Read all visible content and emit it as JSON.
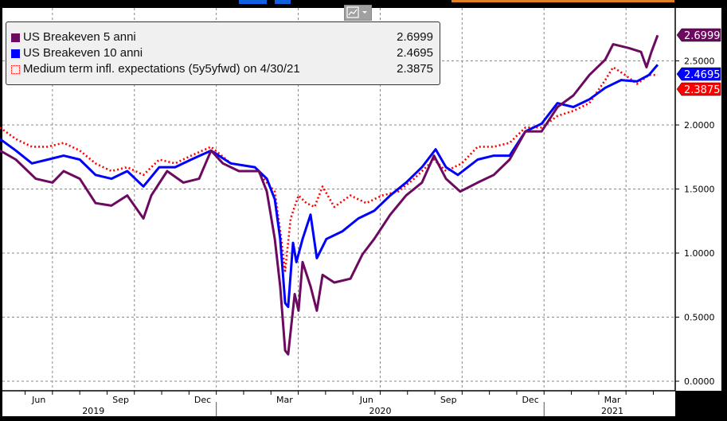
{
  "chart_data": {
    "type": "line",
    "title": "",
    "x_unit": "months since Jan 2019",
    "ylim": [
      -0.05,
      2.95
    ],
    "y_ticks": [
      "0.0000",
      "0.5000",
      "1.0000",
      "1.5000",
      "2.0000",
      "2.5000"
    ],
    "y_tick_values": [
      0,
      0.5,
      1,
      1.5,
      2,
      2.5
    ],
    "x_ticks": [
      {
        "label": "Jun",
        "m": 5.5
      },
      {
        "label": "Sep",
        "m": 8.5
      },
      {
        "label": "Dec",
        "m": 11.5
      },
      {
        "label": "Mar",
        "m": 14.5
      },
      {
        "label": "Jun",
        "m": 17.5
      },
      {
        "label": "Sep",
        "m": 20.5
      },
      {
        "label": "Dec",
        "m": 23.5
      },
      {
        "label": "Mar",
        "m": 26.5
      }
    ],
    "years": [
      {
        "label": "2019",
        "m": 7.5
      },
      {
        "label": "2020",
        "m": 18
      },
      {
        "label": "2021",
        "m": 26.5
      }
    ],
    "grid": true,
    "legend_position": "top-left",
    "series": [
      {
        "name": "US Breakeven 5 anni",
        "last": "2.6999",
        "color": "#6b0a5e",
        "style": "solid",
        "points": [
          [
            4.08,
            1.8
          ],
          [
            4.66,
            1.73
          ],
          [
            5.39,
            1.58
          ],
          [
            6.0,
            1.55
          ],
          [
            6.41,
            1.64
          ],
          [
            7.0,
            1.58
          ],
          [
            7.58,
            1.39
          ],
          [
            8.16,
            1.37
          ],
          [
            8.74,
            1.45
          ],
          [
            9.33,
            1.27
          ],
          [
            9.62,
            1.45
          ],
          [
            10.2,
            1.64
          ],
          [
            10.79,
            1.55
          ],
          [
            11.37,
            1.58
          ],
          [
            11.81,
            1.8
          ],
          [
            12.24,
            1.7
          ],
          [
            12.83,
            1.64
          ],
          [
            13.56,
            1.64
          ],
          [
            13.85,
            1.48
          ],
          [
            14.14,
            1.11
          ],
          [
            14.34,
            0.74
          ],
          [
            14.52,
            0.24
          ],
          [
            14.63,
            0.21
          ],
          [
            14.87,
            0.68
          ],
          [
            15.01,
            0.55
          ],
          [
            15.16,
            0.93
          ],
          [
            15.45,
            0.74
          ],
          [
            15.68,
            0.55
          ],
          [
            15.89,
            0.83
          ],
          [
            16.32,
            0.77
          ],
          [
            16.91,
            0.8
          ],
          [
            17.35,
            0.99
          ],
          [
            17.78,
            1.11
          ],
          [
            18.37,
            1.3
          ],
          [
            18.95,
            1.45
          ],
          [
            19.53,
            1.55
          ],
          [
            19.97,
            1.76
          ],
          [
            20.41,
            1.58
          ],
          [
            20.93,
            1.48
          ],
          [
            21.57,
            1.55
          ],
          [
            22.16,
            1.61
          ],
          [
            22.74,
            1.73
          ],
          [
            23.32,
            1.95
          ],
          [
            23.91,
            1.95
          ],
          [
            24.49,
            2.14
          ],
          [
            25.07,
            2.23
          ],
          [
            25.66,
            2.39
          ],
          [
            26.24,
            2.51
          ],
          [
            26.53,
            2.63
          ],
          [
            27.11,
            2.6
          ],
          [
            27.55,
            2.57
          ],
          [
            27.75,
            2.45
          ],
          [
            27.93,
            2.57
          ],
          [
            28.16,
            2.7
          ]
        ]
      },
      {
        "name": "US Breakeven 10 anni",
        "last": "2.4695",
        "color": "#0000ff",
        "style": "solid",
        "points": [
          [
            4.08,
            1.89
          ],
          [
            4.66,
            1.8
          ],
          [
            5.25,
            1.7
          ],
          [
            5.83,
            1.73
          ],
          [
            6.41,
            1.76
          ],
          [
            7.0,
            1.73
          ],
          [
            7.58,
            1.61
          ],
          [
            8.16,
            1.58
          ],
          [
            8.74,
            1.64
          ],
          [
            9.33,
            1.52
          ],
          [
            9.91,
            1.67
          ],
          [
            10.49,
            1.67
          ],
          [
            11.08,
            1.73
          ],
          [
            11.81,
            1.8
          ],
          [
            12.53,
            1.7
          ],
          [
            13.41,
            1.67
          ],
          [
            13.85,
            1.58
          ],
          [
            14.14,
            1.42
          ],
          [
            14.34,
            1.11
          ],
          [
            14.52,
            0.61
          ],
          [
            14.63,
            0.58
          ],
          [
            14.81,
            1.08
          ],
          [
            14.93,
            0.93
          ],
          [
            15.16,
            1.11
          ],
          [
            15.45,
            1.3
          ],
          [
            15.68,
            0.96
          ],
          [
            16.03,
            1.11
          ],
          [
            16.62,
            1.17
          ],
          [
            17.2,
            1.27
          ],
          [
            17.78,
            1.33
          ],
          [
            18.37,
            1.45
          ],
          [
            18.95,
            1.55
          ],
          [
            19.53,
            1.67
          ],
          [
            20.03,
            1.81
          ],
          [
            20.41,
            1.67
          ],
          [
            20.84,
            1.61
          ],
          [
            21.57,
            1.73
          ],
          [
            22.16,
            1.76
          ],
          [
            22.74,
            1.76
          ],
          [
            23.32,
            1.95
          ],
          [
            23.91,
            2.01
          ],
          [
            24.49,
            2.17
          ],
          [
            25.07,
            2.14
          ],
          [
            25.66,
            2.2
          ],
          [
            26.24,
            2.29
          ],
          [
            26.82,
            2.35
          ],
          [
            27.4,
            2.34
          ],
          [
            27.84,
            2.39
          ],
          [
            28.16,
            2.47
          ]
        ]
      },
      {
        "name": "Medium term infl. expectations (5y5yfwd) on 4/30/21",
        "last": "2.3875",
        "color": "#ff0000",
        "style": "dotted",
        "points": [
          [
            4.08,
            1.98
          ],
          [
            4.66,
            1.89
          ],
          [
            5.25,
            1.83
          ],
          [
            5.83,
            1.83
          ],
          [
            6.41,
            1.86
          ],
          [
            7.0,
            1.8
          ],
          [
            7.58,
            1.7
          ],
          [
            8.16,
            1.64
          ],
          [
            8.74,
            1.67
          ],
          [
            9.33,
            1.61
          ],
          [
            9.91,
            1.73
          ],
          [
            10.49,
            1.7
          ],
          [
            11.08,
            1.76
          ],
          [
            11.81,
            1.83
          ],
          [
            12.53,
            1.7
          ],
          [
            13.41,
            1.67
          ],
          [
            13.85,
            1.55
          ],
          [
            14.14,
            1.48
          ],
          [
            14.34,
            1.17
          ],
          [
            14.52,
            0.86
          ],
          [
            14.72,
            1.27
          ],
          [
            15.01,
            1.45
          ],
          [
            15.3,
            1.39
          ],
          [
            15.6,
            1.36
          ],
          [
            15.89,
            1.52
          ],
          [
            16.32,
            1.36
          ],
          [
            16.91,
            1.45
          ],
          [
            17.49,
            1.39
          ],
          [
            18.07,
            1.45
          ],
          [
            18.66,
            1.48
          ],
          [
            19.24,
            1.58
          ],
          [
            19.97,
            1.73
          ],
          [
            20.41,
            1.64
          ],
          [
            20.99,
            1.7
          ],
          [
            21.57,
            1.83
          ],
          [
            22.16,
            1.83
          ],
          [
            22.74,
            1.86
          ],
          [
            23.32,
            1.98
          ],
          [
            23.91,
            1.98
          ],
          [
            24.49,
            2.07
          ],
          [
            25.07,
            2.11
          ],
          [
            25.66,
            2.17
          ],
          [
            26.24,
            2.35
          ],
          [
            26.53,
            2.45
          ],
          [
            26.97,
            2.39
          ],
          [
            27.4,
            2.32
          ],
          [
            27.84,
            2.39
          ],
          [
            28.16,
            2.39
          ]
        ]
      }
    ]
  }
}
